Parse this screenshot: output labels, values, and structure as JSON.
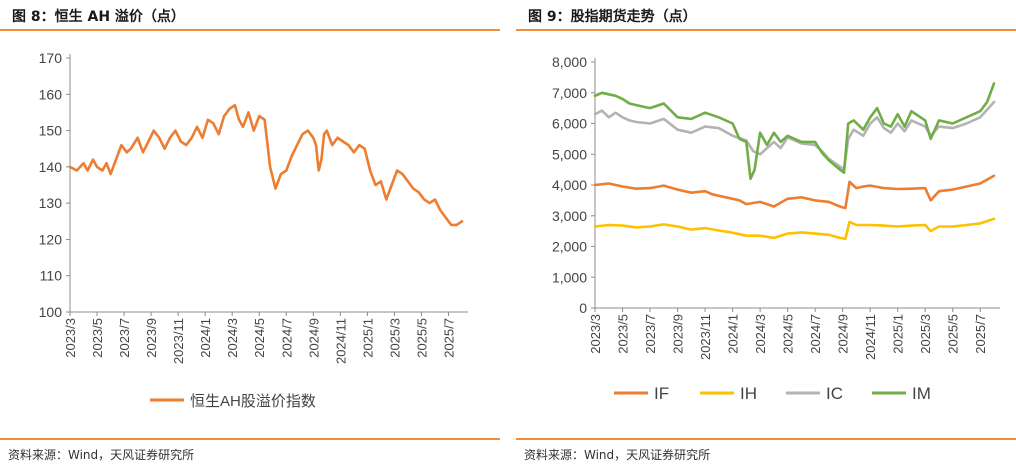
{
  "charts": {
    "left": {
      "figure_title": "图 8：恒生 AH 溢价（点）",
      "source": "资料来源：Wind，天风证券研究所"
    },
    "right": {
      "figure_title": "图 9：股指期货走势（点）",
      "source": "资料来源：Wind，天风证券研究所"
    }
  },
  "colors": {
    "accent_rule": "#f08c3a",
    "ah": "#ed7d31",
    "IF": "#ed7d31",
    "IH": "#ffc000",
    "IC": "#b3b3b3",
    "IM": "#70ad47"
  },
  "chart_data": [
    {
      "type": "line",
      "title": "恒生 AH 溢价（点）",
      "xlabel": "",
      "ylabel": "",
      "ylim": [
        100,
        170
      ],
      "yticks": [
        "100",
        "110",
        "120",
        "130",
        "140",
        "150",
        "160",
        "170"
      ],
      "xticks": [
        "2023/3",
        "2023/5",
        "2023/7",
        "2023/9",
        "2023/11",
        "2024/1",
        "2024/3",
        "2024/5",
        "2024/7",
        "2024/9",
        "2024/11",
        "2025/1",
        "2025/3",
        "2025/5",
        "2025/7"
      ],
      "x_month_range": [
        0,
        29
      ],
      "legend": "bottom",
      "series": [
        {
          "name": "恒生AH股溢价指数",
          "color": "#ed7d31",
          "x": [
            0,
            0.5,
            1,
            1.3,
            1.7,
            2,
            2.4,
            2.7,
            3,
            3.4,
            3.8,
            4.2,
            4.5,
            5,
            5.4,
            5.8,
            6.2,
            6.6,
            7,
            7.4,
            7.8,
            8.2,
            8.6,
            9,
            9.4,
            9.8,
            10.2,
            10.6,
            11,
            11.4,
            11.8,
            12.2,
            12.5,
            12.8,
            13.2,
            13.6,
            14,
            14.4,
            14.8,
            15.2,
            15.6,
            16,
            16.4,
            16.8,
            17.2,
            17.6,
            18,
            18.2,
            18.4,
            18.6,
            18.8,
            19,
            19.4,
            19.8,
            20.2,
            20.6,
            21,
            21.4,
            21.8,
            22.2,
            22.6,
            23,
            23.4,
            23.8,
            24.2,
            24.6,
            25,
            25.4,
            25.8,
            26.2,
            26.6,
            27,
            27.4,
            27.8,
            28.2,
            28.6,
            29
          ],
          "y": [
            140,
            139,
            141,
            139,
            142,
            140,
            139,
            141,
            138,
            142,
            146,
            144,
            145,
            148,
            144,
            147,
            150,
            148,
            145,
            148,
            150,
            147,
            146,
            148,
            151,
            148,
            153,
            152,
            149,
            154,
            156,
            157,
            153,
            151,
            155,
            150,
            154,
            153,
            140,
            134,
            138,
            139,
            143,
            146,
            149,
            150,
            148,
            146,
            139,
            142,
            149,
            150,
            146,
            148,
            147,
            146,
            144,
            146,
            145,
            139,
            135,
            136,
            131,
            135,
            139,
            138,
            136,
            134,
            133,
            131,
            130,
            131,
            128,
            126,
            124,
            124,
            125
          ]
        }
      ]
    },
    {
      "type": "line",
      "title": "股指期货走势（点）",
      "xlabel": "",
      "ylabel": "",
      "ylim": [
        0,
        8000
      ],
      "yticks": [
        "0",
        "1,000",
        "2,000",
        "3,000",
        "4,000",
        "5,000",
        "6,000",
        "7,000",
        "8,000"
      ],
      "xticks": [
        "2023/3",
        "2023/5",
        "2023/7",
        "2023/9",
        "2023/11",
        "2024/1",
        "2024/3",
        "2024/5",
        "2024/7",
        "2024/9",
        "2024/11",
        "2025/1",
        "2025/3",
        "2025/5",
        "2025/7"
      ],
      "x_month_range": [
        0,
        29
      ],
      "legend": "bottom",
      "series": [
        {
          "name": "IF",
          "color": "#ed7d31",
          "x": [
            0,
            1,
            2,
            3,
            4,
            5,
            6,
            7,
            8,
            8.5,
            9,
            9.5,
            10,
            10.5,
            11,
            12,
            13,
            14,
            15,
            16,
            17,
            17.8,
            18.2,
            18.5,
            19,
            19.5,
            20,
            21,
            22,
            23,
            24,
            24.4,
            25,
            26,
            27,
            28,
            29
          ],
          "y": [
            4000,
            4050,
            3950,
            3880,
            3900,
            3980,
            3850,
            3750,
            3800,
            3700,
            3650,
            3600,
            3550,
            3500,
            3380,
            3450,
            3300,
            3550,
            3600,
            3500,
            3450,
            3300,
            3250,
            4100,
            3900,
            3950,
            3980,
            3900,
            3870,
            3880,
            3900,
            3500,
            3800,
            3850,
            3950,
            4050,
            4300
          ]
        },
        {
          "name": "IH",
          "color": "#ffc000",
          "x": [
            0,
            1,
            2,
            3,
            4,
            5,
            6,
            7,
            8,
            9,
            10,
            11,
            12,
            13,
            14,
            15,
            16,
            17,
            17.8,
            18.2,
            18.5,
            19,
            20,
            21,
            22,
            23,
            24,
            24.4,
            25,
            26,
            27,
            28,
            29
          ],
          "y": [
            2650,
            2700,
            2680,
            2620,
            2650,
            2720,
            2650,
            2550,
            2600,
            2520,
            2450,
            2350,
            2350,
            2280,
            2420,
            2460,
            2420,
            2380,
            2280,
            2250,
            2800,
            2700,
            2700,
            2680,
            2650,
            2680,
            2700,
            2500,
            2650,
            2650,
            2700,
            2750,
            2900
          ]
        },
        {
          "name": "IC",
          "color": "#b3b3b3",
          "x": [
            0,
            0.5,
            1,
            1.5,
            2,
            2.5,
            3,
            4,
            5,
            6,
            7,
            8,
            9,
            10,
            11,
            11.5,
            12,
            13,
            13.5,
            14,
            15,
            16,
            16.5,
            17,
            17.8,
            18.1,
            18.4,
            18.8,
            19.5,
            20,
            20.5,
            21,
            21.5,
            22,
            22.5,
            23,
            24,
            24.4,
            25,
            26,
            27,
            28,
            28.5,
            29
          ],
          "y": [
            6300,
            6420,
            6200,
            6350,
            6200,
            6100,
            6050,
            6000,
            6150,
            5800,
            5700,
            5900,
            5850,
            5600,
            5450,
            5100,
            5000,
            5400,
            5200,
            5550,
            5350,
            5300,
            5100,
            4850,
            4600,
            4500,
            5500,
            5800,
            5600,
            6000,
            6200,
            5850,
            5700,
            6000,
            5750,
            6100,
            5900,
            5600,
            5900,
            5850,
            6000,
            6200,
            6450,
            6700
          ]
        },
        {
          "name": "IM",
          "color": "#70ad47",
          "x": [
            0,
            0.5,
            1,
            1.5,
            2,
            2.5,
            3,
            4,
            5,
            6,
            7,
            8,
            9,
            10,
            10.5,
            11,
            11.3,
            11.6,
            12,
            12.5,
            13,
            13.5,
            14,
            15,
            16,
            16.5,
            17,
            17.8,
            18.1,
            18.4,
            18.8,
            19.5,
            20,
            20.5,
            21,
            21.5,
            22,
            22.5,
            23,
            24,
            24.4,
            25,
            26,
            27,
            28,
            28.5,
            29
          ],
          "y": [
            6900,
            7000,
            6950,
            6900,
            6800,
            6650,
            6600,
            6500,
            6650,
            6200,
            6150,
            6350,
            6200,
            6000,
            5500,
            5400,
            4200,
            4500,
            5700,
            5300,
            5700,
            5400,
            5600,
            5400,
            5400,
            5050,
            4800,
            4500,
            4400,
            6000,
            6100,
            5800,
            6200,
            6500,
            6000,
            5900,
            6300,
            5900,
            6400,
            6100,
            5500,
            6100,
            6000,
            6200,
            6400,
            6700,
            7300
          ]
        }
      ]
    }
  ]
}
